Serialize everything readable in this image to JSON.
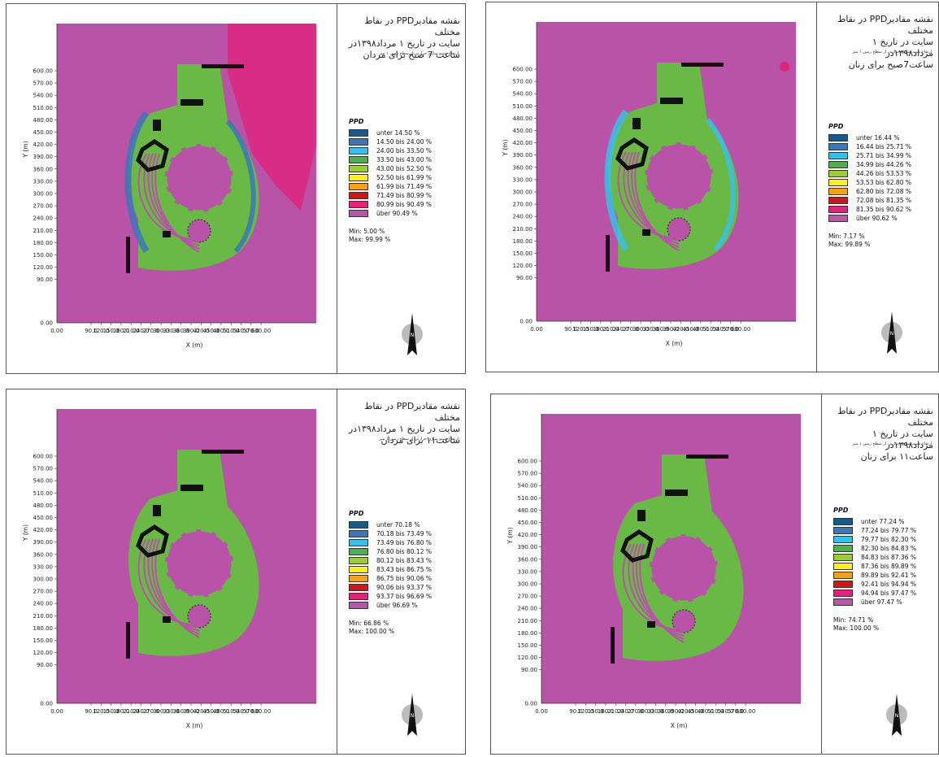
{
  "panels": [
    {
      "title": [
        "نقشه مقادیرPPD در نقاط مختلف",
        "سایت در تاریخ ۱ مرداد۱۳۹۸در",
        "ساعت 7 صبح برای مردان"
      ],
      "subtitle": "ارتفاع شبیه سازی حرارتی از سطح زمین ۱ متر",
      "legend_title": "PPD",
      "legend": [
        "unter 14.50 %",
        "14.50 bis 24.00 %",
        "24.00 bis 33.50 %",
        "33.50 bis 43.00 %",
        "43.00 bis 52.50 %",
        "52.50 bis 61.99 %",
        "61.99 bis 71.49 %",
        "71.49 bis 80.99 %",
        "80.99 bis 90.49 %",
        "über 90.49 %"
      ],
      "min": "Min: 5.00 %",
      "max": "Max: 99.99 %"
    },
    {
      "title": [
        "نقشه مقادیرPPD در نقاط مختلف",
        "سایت در تاریخ ۱ مرداد۱۳۹۸در",
        "ساعت7صبح برای زنان"
      ],
      "subtitle": "ارتفاع شبیه سازی حرارتی از سطح زمین ۱ متر",
      "legend_title": "PPD",
      "legend": [
        "unter 16.44 %",
        "16.44 bis 25.71 %",
        "25.71 bis 34.99 %",
        "34.99 bis 44.26 %",
        "44.26 bis 53.53 %",
        "53.53 bis 62.80 %",
        "62.80 bis 72.08 %",
        "72.08 bis 81.35 %",
        "81.35 bis 90.62 %",
        "über 90.62 %"
      ],
      "min": "Min: 7.17 %",
      "max": "Max: 99.89 %"
    },
    {
      "title": [
        "نقشه مقادیرPPD در نقاط مختلف",
        "سایت در تاریخ ۱ مرداد۱۳۹۸در",
        "ساعت۱۱ برای مردان"
      ],
      "subtitle": "ارتفاع شبیه سازی حرارتی از سطح زمین ۱ متر",
      "legend_title": "PPD",
      "legend": [
        "unter 70.18 %",
        "70.18 bis 73.49 %",
        "73.49 bis 76.80 %",
        "76.80 bis 80.12 %",
        "80.12 bis 83.43 %",
        "83.43 bis 86.75 %",
        "86.75 bis 90.06 %",
        "90.06 bis 93.37 %",
        "93.37 bis 96.69 %",
        "über 96.69 %"
      ],
      "min": "Min: 66.86 %",
      "max": "Max: 100.00 %"
    },
    {
      "title": [
        "نقشه مقادیرPPD در نقاط مختلف",
        "سایت در تاریخ ۱ مرداد۱۳۹۸در",
        "ساعت۱۱ برای زنان"
      ],
      "subtitle": "ارتفاع شبیه سازی حرارتی از سطح زمین ۱ متر",
      "legend_title": "PPD",
      "legend": [
        "unter 77.24 %",
        "77.24 bis 79.77 %",
        "79.77 bis 82.30 %",
        "82.30 bis 84.83 %",
        "84.83 bis 87.36 %",
        "87.36 bis 89.89 %",
        "89.89 bis 92.41 %",
        "92.41 bis 94.94 %",
        "94.94 bis 97.47 %",
        "über 97.47 %"
      ],
      "min": "Min: 74.71 %",
      "max": "Max: 100.00 %"
    }
  ],
  "legend_colors": [
    "#1a5a8a",
    "#3a78b8",
    "#37c0e8",
    "#4db04d",
    "#9ccc3c",
    "#ffee22",
    "#f3a21c",
    "#d4141c",
    "#e0247a",
    "#bb55aa"
  ],
  "map_colors": {
    "background": "#b853a8",
    "vegetation": "#6ab846",
    "building": "#111111",
    "cool": "#3a78b8",
    "hot": "#e0247a"
  },
  "axis": {
    "y_label": "Y (m)",
    "x_label": "X (m)",
    "y_ticks": [
      "600.00",
      "570.00",
      "540.00",
      "510.00",
      "480.00",
      "450.00",
      "420.00",
      "390.00",
      "360.00",
      "330.00",
      "300.00",
      "270.00",
      "240.00",
      "210.00",
      "180.00",
      "150.00",
      "120.00",
      "90.00"
    ],
    "y_zero": "0.00",
    "x_zero": "0.00",
    "x_ticks": [
      "90.0",
      "120.0",
      "150.0",
      "180.0",
      "210.0",
      "240.0",
      "270.0",
      "300.0",
      "330.0",
      "360.0",
      "390.0",
      "420.0",
      "450.0",
      "480.0",
      "510.0",
      "540.0",
      "570.0",
      "600.00"
    ]
  },
  "compass": {
    "letter": "N",
    "icon": "north-arrow-icon"
  }
}
